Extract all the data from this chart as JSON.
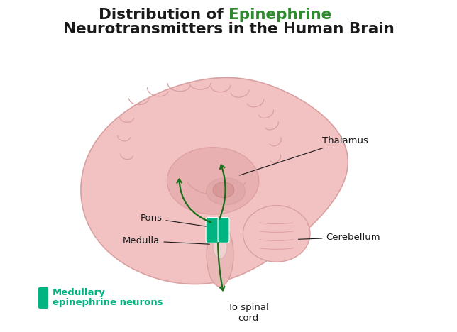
{
  "title_black1": "Distribution of ",
  "title_green": "Epinephrine",
  "title_line2": "Neurotransmitters in the Human Brain",
  "title_fontsize": 15.5,
  "title_color_black": "#1a1a1a",
  "title_color_green": "#2e8b2e",
  "legend_label_line1": "Medullary",
  "legend_label_line2": "epinephrine neurons",
  "legend_color": "#00b482",
  "arrow_color": "#1a6e1a",
  "annotation_color": "#1a1a1a",
  "background_color": "#ffffff",
  "ann_fontsize": 9.5,
  "brain_main_color": "#f2c2c2",
  "brain_edge_color": "#d8a0a0",
  "brain_inner_color": "#e8b0b0",
  "brain_dark_color": "#dda0a0",
  "neuron_color": "#00b482",
  "neuron_edge": "#008060"
}
